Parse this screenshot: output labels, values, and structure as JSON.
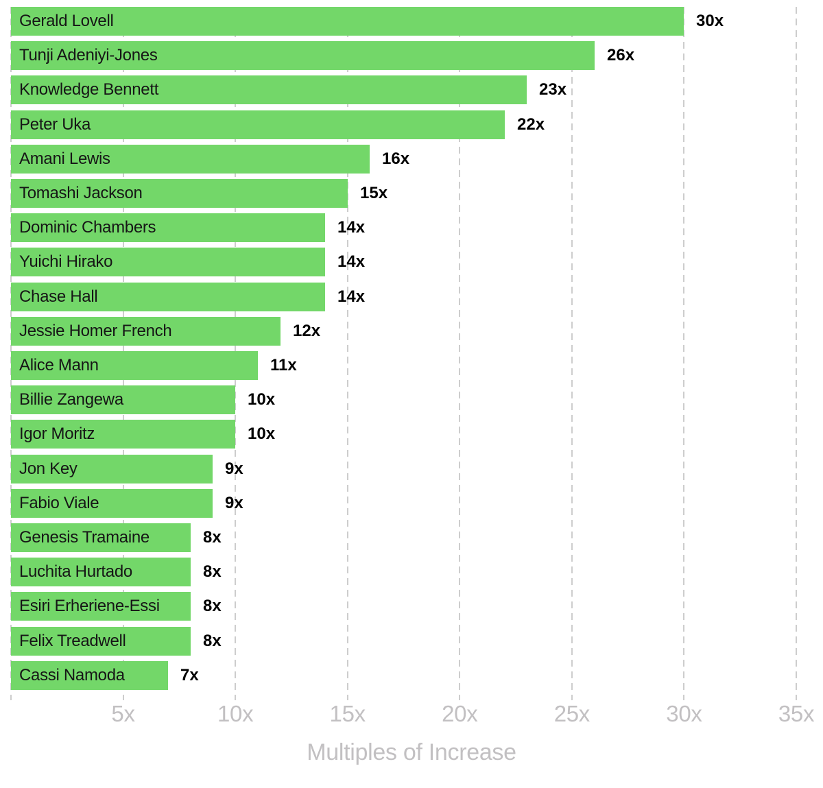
{
  "chart_data": {
    "type": "bar",
    "orientation": "horizontal",
    "title": "",
    "xlabel": "Multiples of Increase",
    "ylabel": "",
    "xlim": [
      0,
      35
    ],
    "grid": "vertical-dashed",
    "gridline_values": [
      0,
      5,
      10,
      15,
      20,
      25,
      30,
      35
    ],
    "x_ticks": [
      {
        "value": 5,
        "label": "5x"
      },
      {
        "value": 10,
        "label": "10x"
      },
      {
        "value": 15,
        "label": "15x"
      },
      {
        "value": 20,
        "label": "20x"
      },
      {
        "value": 25,
        "label": "25x"
      },
      {
        "value": 30,
        "label": "30x"
      },
      {
        "value": 35,
        "label": "35x"
      }
    ],
    "legend": "none",
    "categories": [
      "Gerald Lovell",
      "Tunji Adeniyi-Jones",
      "Knowledge Bennett",
      "Peter Uka",
      "Amani Lewis",
      "Tomashi Jackson",
      "Dominic Chambers",
      "Yuichi Hirako",
      "Chase Hall",
      "Jessie Homer French",
      "Alice Mann",
      "Billie Zangewa",
      "Igor Moritz",
      "Jon Key",
      "Fabio Viale",
      "Genesis Tramaine",
      "Luchita Hurtado",
      "Esiri Erheriene-Essi",
      "Felix Treadwell",
      "Cassi Namoda"
    ],
    "values": [
      30,
      26,
      23,
      22,
      16,
      15,
      14,
      14,
      14,
      12,
      11,
      10,
      10,
      9,
      9,
      8,
      8,
      8,
      8,
      7
    ],
    "value_labels": [
      "30x",
      "26x",
      "23x",
      "22x",
      "16x",
      "15x",
      "14x",
      "14x",
      "14x",
      "12x",
      "11x",
      "10x",
      "10x",
      "9x",
      "9x",
      "8x",
      "8x",
      "8x",
      "8x",
      "7x"
    ]
  },
  "colors": {
    "bar": "#73d769",
    "gridline": "#cdcdcd",
    "axis_text": "#c2c0c2",
    "artist_name_text": "#161616",
    "value_label_text": "#000000",
    "background": "#ffffff"
  }
}
